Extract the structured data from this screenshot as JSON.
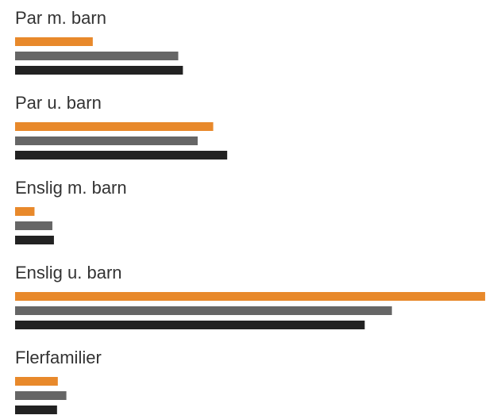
{
  "chart_data": {
    "type": "bar",
    "orientation": "horizontal",
    "categories": [
      "Par m. barn",
      "Par u. barn",
      "Enslig m. barn",
      "Enslig u. barn",
      "Flerfamilier"
    ],
    "series": [
      {
        "color": "#e8892b",
        "values": [
          10,
          25.5,
          2.5,
          60.5,
          5.5
        ]
      },
      {
        "color": "#666666",
        "values": [
          21,
          23.5,
          4.8,
          48.5,
          6.6
        ]
      },
      {
        "color": "#222222",
        "values": [
          21.6,
          27.3,
          5.0,
          45.0,
          5.4
        ]
      }
    ],
    "xlim": [
      0,
      61
    ],
    "grid": false,
    "legend": "none"
  }
}
